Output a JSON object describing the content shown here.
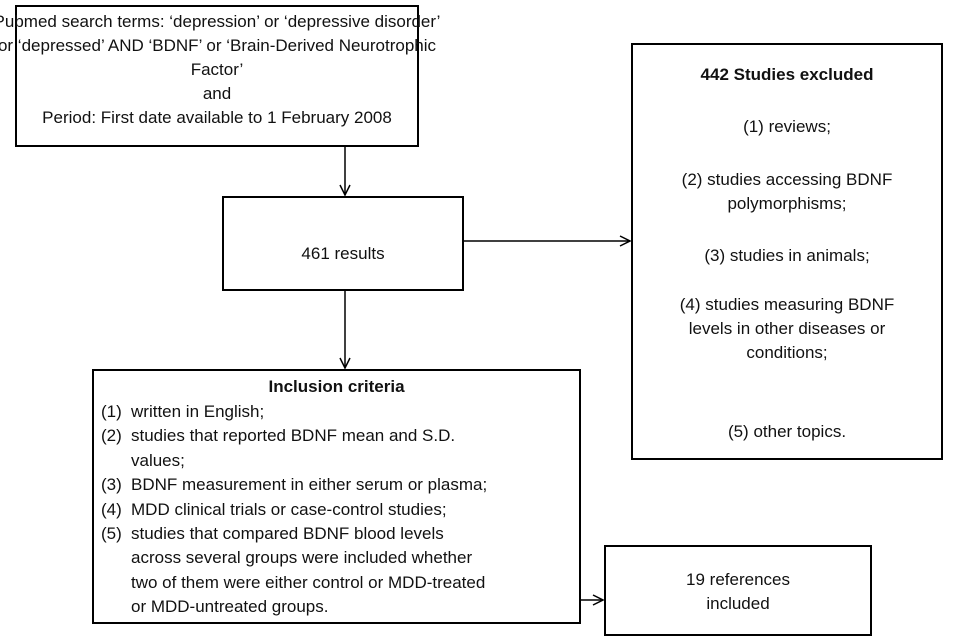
{
  "nodes": [
    {
      "lines": [
        "Pubmed search terms: ‘depression’ or ‘depressive disorder’",
        "or ‘depressed’ AND ‘BDNF’ or ‘Brain-Derived Neurotrophic",
        "Factor’",
        "and",
        "Period: First date available to 1 February 2008"
      ]
    },
    {
      "lines": [
        "461 results"
      ]
    },
    {
      "title": "442 Studies excluded",
      "lines": [
        "(1) reviews;",
        "(2) studies accessing BDNF",
        "polymorphisms;",
        "(3) studies in animals;",
        "(4) studies measuring BDNF",
        "levels in other diseases or",
        "conditions;",
        "(5) other topics."
      ]
    },
    {
      "title": "Inclusion criteria",
      "items": [
        {
          "number": "(1)",
          "lines": [
            "written in English;"
          ]
        },
        {
          "number": "(2)",
          "lines": [
            "studies that reported BDNF mean and S.D.",
            "values;"
          ]
        },
        {
          "number": "(3)",
          "lines": [
            "BDNF measurement in either serum or plasma;"
          ]
        },
        {
          "number": "(4)",
          "lines": [
            "MDD clinical trials or case-control studies;"
          ]
        },
        {
          "number": "(5)",
          "lines": [
            "studies that compared BDNF blood levels",
            "across several groups were included whether",
            "two of them were either control or MDD-treated",
            "or MDD-untreated groups."
          ]
        }
      ]
    },
    {
      "lines": [
        "19 references",
        "included"
      ]
    }
  ]
}
